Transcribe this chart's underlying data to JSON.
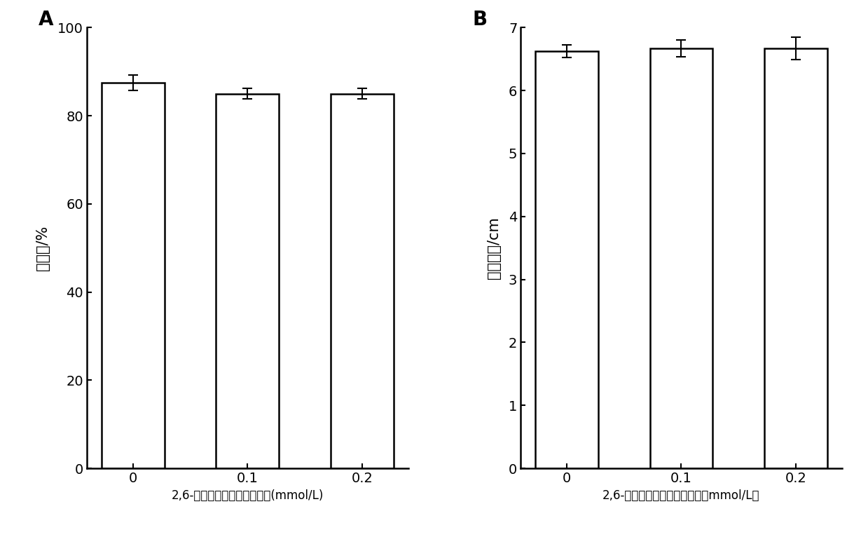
{
  "panel_A": {
    "label": "A",
    "categories": [
      "0",
      "0.1",
      "0.2"
    ],
    "values": [
      87.5,
      85.0,
      85.0
    ],
    "errors": [
      1.8,
      1.2,
      1.2
    ],
    "ylabel": "萍发率/%",
    "xlabel_part1": "2,6-二叔丁基对甲酚溶液浓度",
    "xlabel_part2": "(mmol/L)",
    "ylim": [
      0,
      100
    ],
    "yticks": [
      0,
      20,
      40,
      60,
      80,
      100
    ]
  },
  "panel_B": {
    "label": "B",
    "categories": [
      "0",
      "0.1",
      "0.2"
    ],
    "values": [
      6.62,
      6.67,
      6.67
    ],
    "errors": [
      0.1,
      0.13,
      0.18
    ],
    "ylabel": "菌落直径/cm",
    "xlabel_part1": "2,6-二叔丁基对甲酚溶液浓度（",
    "xlabel_part2": "mmol/L）",
    "ylim": [
      0,
      7
    ],
    "yticks": [
      0,
      1,
      2,
      3,
      4,
      5,
      6,
      7
    ]
  },
  "bar_color": "#ffffff",
  "bar_edgecolor": "#000000",
  "bar_linewidth": 1.8,
  "bar_width": 0.55,
  "error_capsize": 5,
  "error_linewidth": 1.5,
  "tick_fontsize": 14,
  "ylabel_fontsize": 15,
  "xlabel_fontsize": 12,
  "panel_label_fontsize": 20,
  "background_color": "#ffffff"
}
